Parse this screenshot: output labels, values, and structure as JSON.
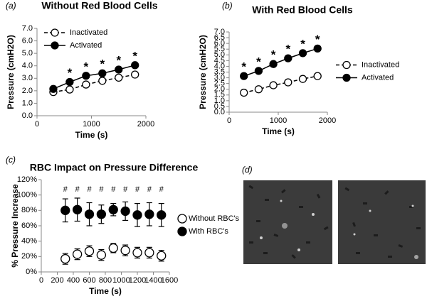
{
  "chart_data": [
    {
      "type": "line",
      "panel_label": "(a)",
      "title": "Without Red Blood Cells",
      "xlabel": "Time (s)",
      "ylabel": "Pressure (cmH2O)",
      "x": [
        300,
        600,
        900,
        1200,
        1500,
        1800
      ],
      "series": [
        {
          "name": "Inactivated",
          "color": "#000000",
          "marker_fill": "#ffffff",
          "line_style": "dashed",
          "values": [
            1.9,
            2.1,
            2.5,
            2.8,
            3.05,
            3.3
          ]
        },
        {
          "name": "Activated",
          "color": "#000000",
          "marker_fill": "#000000",
          "line_style": "solid",
          "values": [
            2.15,
            2.7,
            3.2,
            3.4,
            3.7,
            4.05
          ]
        }
      ],
      "annotations": [
        {
          "text": "*",
          "x": 600
        },
        {
          "text": "*",
          "x": 900
        },
        {
          "text": "*",
          "x": 1200
        },
        {
          "text": "*",
          "x": 1500
        },
        {
          "text": "*",
          "x": 1800
        }
      ],
      "xlim": [
        0,
        2000
      ],
      "xticks": [
        0,
        1000,
        2000
      ],
      "ylim": [
        0,
        7
      ],
      "yticks": [
        {
          "value": 0,
          "label": "0.0"
        },
        {
          "value": 1,
          "label": "1.0"
        },
        {
          "value": 2,
          "label": "2.0"
        },
        {
          "value": 3,
          "label": "3.0"
        },
        {
          "value": 4,
          "label": "4.0"
        },
        {
          "value": 5,
          "label": "5.0"
        },
        {
          "value": 6,
          "label": "6.0"
        },
        {
          "value": 7,
          "label": "7.0"
        }
      ],
      "legend": "upper left"
    },
    {
      "type": "line",
      "panel_label": "(b)",
      "title": "With Red Blood Cells",
      "xlabel": "Time (s)",
      "ylabel": "Pressure (cmH2O)",
      "x": [
        300,
        600,
        900,
        1200,
        1500,
        1800
      ],
      "series": [
        {
          "name": "Inactivated",
          "color": "#000000",
          "marker_fill": "#ffffff",
          "line_style": "dashed",
          "values": [
            1.7,
            2.0,
            2.35,
            2.6,
            2.9,
            3.15
          ]
        },
        {
          "name": "Activated",
          "color": "#000000",
          "marker_fill": "#000000",
          "line_style": "solid",
          "values": [
            3.15,
            3.6,
            4.2,
            4.7,
            5.15,
            5.55
          ]
        }
      ],
      "annotations": [
        {
          "text": "*",
          "x": 300
        },
        {
          "text": "*",
          "x": 600
        },
        {
          "text": "*",
          "x": 900
        },
        {
          "text": "*",
          "x": 1200
        },
        {
          "text": "*",
          "x": 1500
        },
        {
          "text": "*",
          "x": 1800
        }
      ],
      "xlim": [
        0,
        2000
      ],
      "xticks": [
        0,
        1000,
        2000
      ],
      "ylim": [
        0,
        7
      ],
      "yticks": [
        {
          "value": 0,
          "label": "0.0"
        },
        {
          "value": 0.5,
          "label": "0.5"
        },
        {
          "value": 1,
          "label": "1.0"
        },
        {
          "value": 1.5,
          "label": "1.5"
        },
        {
          "value": 2,
          "label": "2.0"
        },
        {
          "value": 2.5,
          "label": "2.5"
        },
        {
          "value": 3,
          "label": "3.0"
        },
        {
          "value": 3.5,
          "label": "3.5"
        },
        {
          "value": 4,
          "label": "4.0"
        },
        {
          "value": 4.5,
          "label": "4.5"
        },
        {
          "value": 5,
          "label": "5.0"
        },
        {
          "value": 5.5,
          "label": "5.5"
        },
        {
          "value": 6,
          "label": "6.0"
        },
        {
          "value": 6.5,
          "label": "6.5"
        },
        {
          "value": 7,
          "label": "7.0"
        }
      ],
      "legend": "outside right"
    },
    {
      "type": "scatter",
      "panel_label": "(c)",
      "title": "RBC Impact on Pressure Difference",
      "xlabel": "Time (s)",
      "ylabel": "% Pressure Increase",
      "x": [
        300,
        450,
        600,
        750,
        900,
        1050,
        1200,
        1350,
        1500
      ],
      "series": [
        {
          "name": "Without RBC's",
          "color": "#000000",
          "marker_fill": "#ffffff",
          "values": [
            17,
            23,
            27,
            22,
            31,
            28,
            25,
            25,
            21
          ],
          "errors": [
            7,
            7,
            7,
            7,
            6,
            7,
            7,
            7,
            7
          ]
        },
        {
          "name": "With RBC's",
          "color": "#000000",
          "marker_fill": "#000000",
          "values": [
            80,
            81,
            75,
            75,
            81,
            79,
            74,
            75,
            74
          ],
          "errors": [
            15,
            15,
            15,
            12,
            8,
            12,
            15,
            15,
            15
          ]
        }
      ],
      "annotations": [
        {
          "text": "#",
          "x": 300
        },
        {
          "text": "#",
          "x": 450
        },
        {
          "text": "#",
          "x": 600
        },
        {
          "text": "#",
          "x": 750
        },
        {
          "text": "#",
          "x": 900
        },
        {
          "text": "#",
          "x": 1050
        },
        {
          "text": "#",
          "x": 1200
        },
        {
          "text": "#",
          "x": 1350
        },
        {
          "text": "#",
          "x": 1500
        }
      ],
      "xlim": [
        0,
        1600
      ],
      "xticks": [
        0,
        200,
        400,
        600,
        800,
        1000,
        1200,
        1400,
        1600
      ],
      "ylim": [
        0,
        120
      ],
      "yticks": [
        {
          "value": 0,
          "label": "0%"
        },
        {
          "value": 20,
          "label": "20%"
        },
        {
          "value": 40,
          "label": "40%"
        },
        {
          "value": 60,
          "label": "60%"
        },
        {
          "value": 80,
          "label": "80%"
        },
        {
          "value": 100,
          "label": "100%"
        },
        {
          "value": 120,
          "label": "120%"
        }
      ],
      "legend": "outside right"
    }
  ],
  "panel_d": {
    "label": "(d)"
  }
}
